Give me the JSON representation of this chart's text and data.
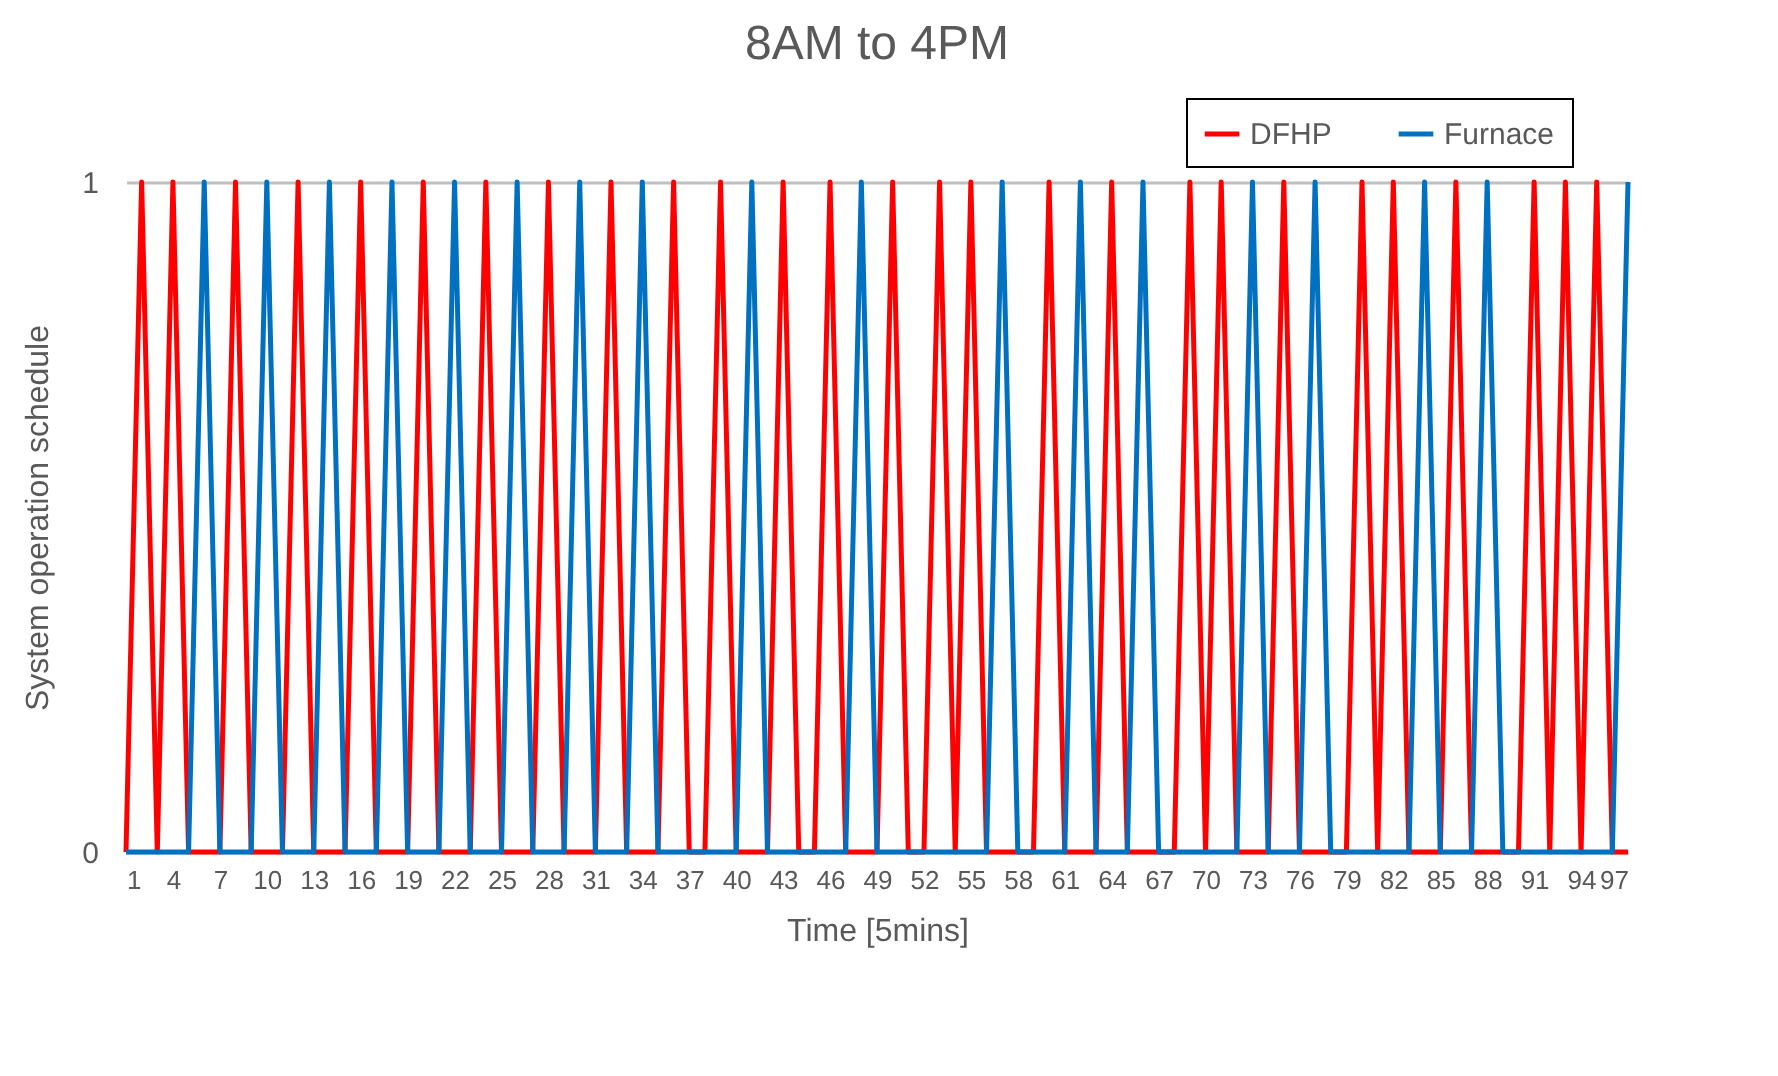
{
  "chart_data": {
    "type": "line",
    "title": "8AM to 4PM",
    "xlabel": "Time [5mins]",
    "ylabel": "System operation schedule",
    "x": [
      1,
      2,
      3,
      4,
      5,
      6,
      7,
      8,
      9,
      10,
      11,
      12,
      13,
      14,
      15,
      16,
      17,
      18,
      19,
      20,
      21,
      22,
      23,
      24,
      25,
      26,
      27,
      28,
      29,
      30,
      31,
      32,
      33,
      34,
      35,
      36,
      37,
      38,
      39,
      40,
      41,
      42,
      43,
      44,
      45,
      46,
      47,
      48,
      49,
      50,
      51,
      52,
      53,
      54,
      55,
      56,
      57,
      58,
      59,
      60,
      61,
      62,
      63,
      64,
      65,
      66,
      67,
      68,
      69,
      70,
      71,
      72,
      73,
      74,
      75,
      76,
      77,
      78,
      79,
      80,
      81,
      82,
      83,
      84,
      85,
      86,
      87,
      88,
      89,
      90,
      91,
      92,
      93,
      94,
      95,
      96,
      97
    ],
    "xlim": [
      1,
      97
    ],
    "xticks": [
      1,
      4,
      7,
      10,
      13,
      16,
      19,
      22,
      25,
      28,
      31,
      34,
      37,
      40,
      43,
      46,
      49,
      52,
      55,
      58,
      61,
      64,
      67,
      70,
      73,
      76,
      79,
      82,
      85,
      88,
      91,
      94,
      97
    ],
    "ylim": [
      0,
      1
    ],
    "yticks": [
      0,
      1
    ],
    "grid": "y",
    "legend": "top right",
    "line_style": "solid",
    "marker": "none",
    "series": [
      {
        "name": "DFHP",
        "color": "#ff0000",
        "values": [
          0,
          1,
          0,
          1,
          0,
          0,
          0,
          1,
          0,
          0,
          0,
          1,
          0,
          0,
          0,
          1,
          0,
          0,
          0,
          1,
          0,
          0,
          0,
          1,
          0,
          0,
          0,
          1,
          0,
          0,
          0,
          1,
          0,
          0,
          0,
          1,
          0,
          0,
          1,
          0,
          0,
          0,
          1,
          0,
          0,
          1,
          0,
          0,
          0,
          1,
          0,
          0,
          1,
          0,
          1,
          0,
          0,
          0,
          0,
          1,
          0,
          0,
          0,
          1,
          0,
          0,
          0,
          0,
          1,
          0,
          1,
          0,
          0,
          0,
          1,
          0,
          0,
          0,
          0,
          1,
          0,
          1,
          0,
          0,
          0,
          1,
          0,
          0,
          0,
          0,
          1,
          0,
          1,
          0,
          1,
          0,
          0
        ]
      },
      {
        "name": "Furnace",
        "color": "#0070c0",
        "values": [
          0,
          0,
          0,
          0,
          0,
          1,
          0,
          0,
          0,
          1,
          0,
          0,
          0,
          1,
          0,
          0,
          0,
          1,
          0,
          0,
          0,
          1,
          0,
          0,
          0,
          1,
          0,
          0,
          0,
          1,
          0,
          0,
          0,
          1,
          0,
          0,
          0,
          0,
          0,
          0,
          1,
          0,
          0,
          0,
          0,
          0,
          0,
          1,
          0,
          0,
          0,
          0,
          0,
          0,
          0,
          0,
          1,
          0,
          0,
          0,
          0,
          1,
          0,
          0,
          0,
          1,
          0,
          0,
          0,
          0,
          0,
          0,
          1,
          0,
          0,
          0,
          1,
          0,
          0,
          0,
          0,
          0,
          0,
          1,
          0,
          0,
          0,
          1,
          0,
          0,
          0,
          0,
          0,
          0,
          0,
          0,
          1
        ]
      }
    ]
  }
}
